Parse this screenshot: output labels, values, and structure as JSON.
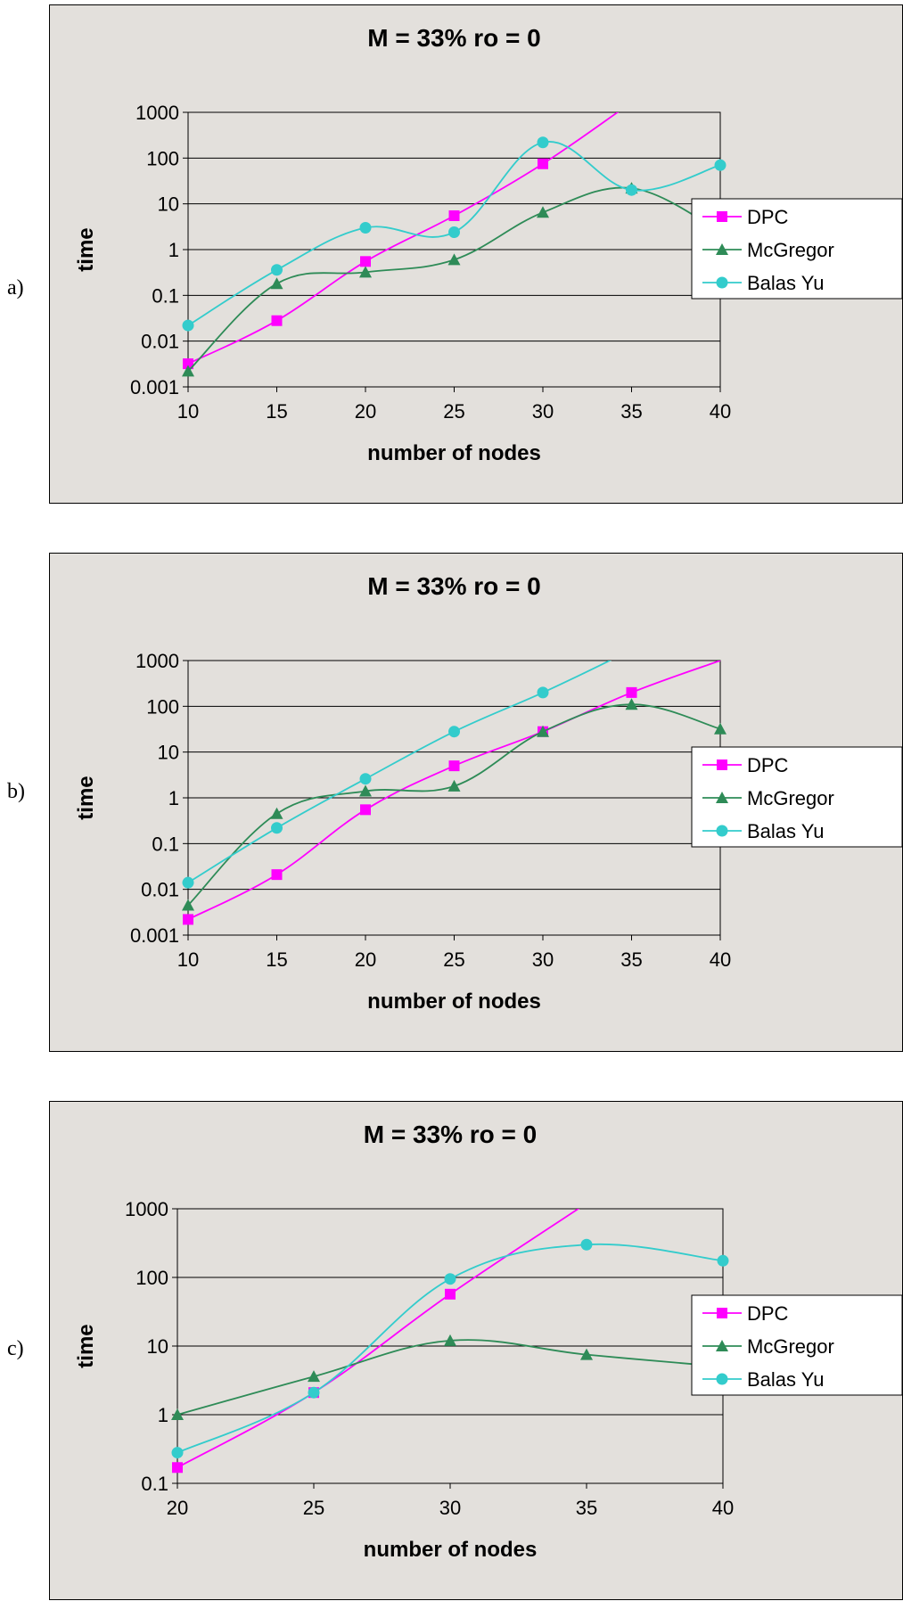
{
  "chart_data": [
    {
      "panel": "a)",
      "type": "line",
      "title": "M = 33% ro = 0",
      "xlabel": "number of nodes",
      "ylabel": "time",
      "x": [
        10,
        15,
        20,
        25,
        30,
        35,
        40
      ],
      "x_ticks": [
        "10",
        "15",
        "20",
        "25",
        "30",
        "35",
        "40"
      ],
      "y_scale": "log",
      "ylim": [
        0.001,
        1000
      ],
      "y_ticks": [
        "0.001",
        "0.01",
        "0.1",
        "1",
        "10",
        "100",
        "1000"
      ],
      "grid": "horizontal",
      "legend": "right",
      "series": [
        {
          "name": "DPC",
          "color": "#ff00ff",
          "marker": "square",
          "x": [
            10,
            15,
            20,
            25,
            30,
            34.5
          ],
          "values": [
            0.0032,
            0.028,
            0.55,
            5.5,
            75,
            1200
          ],
          "marked": [
            true,
            true,
            true,
            true,
            true,
            false
          ]
        },
        {
          "name": "McGregor",
          "color": "#2e8b57",
          "marker": "triangle",
          "x": [
            10,
            15,
            20,
            25,
            30,
            35,
            40
          ],
          "values": [
            0.0022,
            0.18,
            0.32,
            0.6,
            6.5,
            22,
            2.5
          ],
          "marked": [
            true,
            true,
            true,
            true,
            true,
            true,
            true
          ]
        },
        {
          "name": "Balas Yu",
          "color": "#33cccc",
          "marker": "circle",
          "x": [
            10,
            15,
            20,
            25,
            30,
            35,
            40
          ],
          "values": [
            0.022,
            0.36,
            3,
            2.4,
            220,
            20,
            70
          ],
          "marked": [
            true,
            true,
            true,
            true,
            true,
            true,
            true
          ]
        }
      ]
    },
    {
      "panel": "b)",
      "type": "line",
      "title": "M = 33% ro = 0",
      "xlabel": "number of nodes",
      "ylabel": "time",
      "x": [
        10,
        15,
        20,
        25,
        30,
        35,
        40
      ],
      "x_ticks": [
        "10",
        "15",
        "20",
        "25",
        "30",
        "35",
        "40"
      ],
      "y_scale": "log",
      "ylim": [
        0.001,
        1000
      ],
      "y_ticks": [
        "0.001",
        "0.01",
        "0.1",
        "1",
        "10",
        "100",
        "1000"
      ],
      "grid": "horizontal",
      "legend": "right",
      "series": [
        {
          "name": "DPC",
          "color": "#ff00ff",
          "marker": "square",
          "x": [
            10,
            15,
            20,
            25,
            30,
            35,
            40
          ],
          "values": [
            0.0022,
            0.021,
            0.55,
            5,
            28,
            200,
            1000
          ],
          "marked": [
            true,
            true,
            true,
            true,
            true,
            true,
            false
          ]
        },
        {
          "name": "McGregor",
          "color": "#2e8b57",
          "marker": "triangle",
          "x": [
            10,
            15,
            20,
            25,
            30,
            35,
            40
          ],
          "values": [
            0.0045,
            0.45,
            1.4,
            1.8,
            28,
            110,
            32
          ],
          "marked": [
            true,
            true,
            true,
            true,
            true,
            true,
            true
          ]
        },
        {
          "name": "Balas Yu",
          "color": "#33cccc",
          "marker": "circle",
          "x": [
            10,
            15,
            20,
            25,
            30,
            34.2
          ],
          "values": [
            0.014,
            0.22,
            2.6,
            28,
            200,
            1200
          ],
          "marked": [
            true,
            true,
            true,
            true,
            true,
            false
          ]
        }
      ]
    },
    {
      "panel": "c)",
      "type": "line",
      "title": "M = 33% ro = 0",
      "xlabel": "number of nodes",
      "ylabel": "time",
      "x": [
        20,
        25,
        30,
        35,
        40
      ],
      "x_ticks": [
        "20",
        "25",
        "30",
        "35",
        "40"
      ],
      "y_scale": "log",
      "ylim": [
        0.1,
        1000
      ],
      "y_ticks": [
        "0.1",
        "1",
        "10",
        "100",
        "1000"
      ],
      "grid": "horizontal",
      "legend": "right",
      "series": [
        {
          "name": "DPC",
          "color": "#ff00ff",
          "marker": "square",
          "x": [
            20,
            25,
            30,
            35
          ],
          "values": [
            0.17,
            2.1,
            57,
            1200
          ],
          "marked": [
            true,
            true,
            true,
            false
          ]
        },
        {
          "name": "McGregor",
          "color": "#2e8b57",
          "marker": "triangle",
          "x": [
            20,
            25,
            30,
            35,
            40
          ],
          "values": [
            1,
            3.6,
            12,
            7.5,
            5
          ],
          "marked": [
            true,
            true,
            true,
            true,
            true
          ]
        },
        {
          "name": "Balas Yu",
          "color": "#33cccc",
          "marker": "circle",
          "x": [
            20,
            25,
            30,
            35,
            40
          ],
          "values": [
            0.28,
            2.1,
            95,
            300,
            175
          ],
          "marked": [
            true,
            true,
            true,
            true,
            true
          ]
        }
      ]
    }
  ]
}
